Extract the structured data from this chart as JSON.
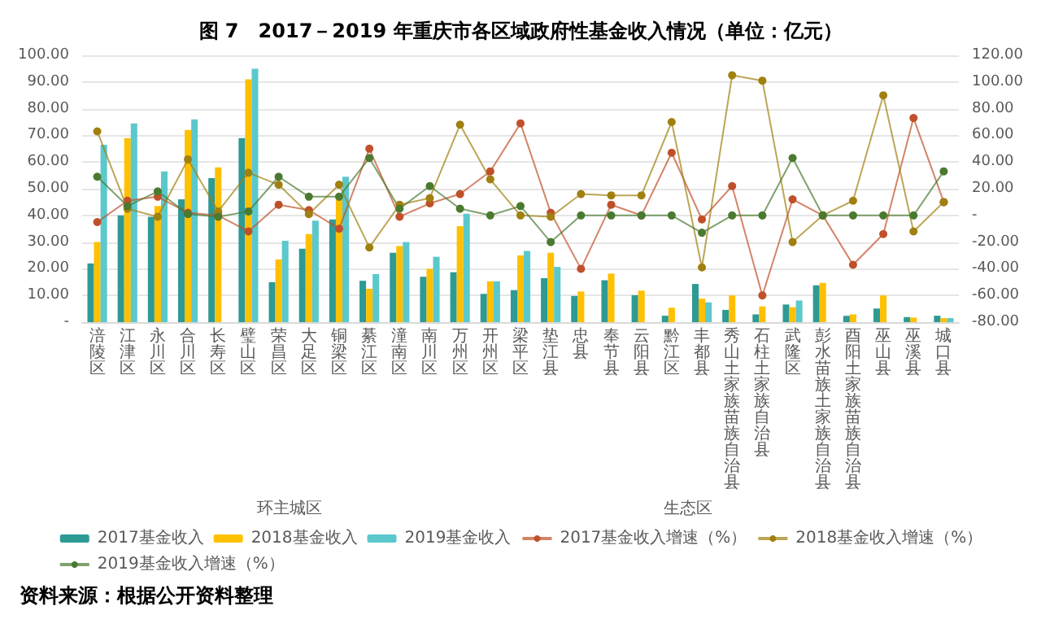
{
  "chart_data": {
    "type": "bar",
    "title": "图 7　2017－2019 年重庆市各区域政府性基金收入情况（单位：亿元）",
    "categories": [
      "涪陵区",
      "江津区",
      "永川区",
      "合川区",
      "长寿区",
      "璧山区",
      "荣昌区",
      "大足区",
      "铜梁区",
      "綦江区",
      "潼南区",
      "南川区",
      "万州区",
      "开州区",
      "梁平区",
      "垫江县",
      "忠县",
      "奉节县",
      "云阳县",
      "黔江区",
      "丰都县",
      "秀山土家族苗族自治县",
      "石柱土家族自治县",
      "武隆区",
      "彭水苗族土家族自治县",
      "酉阳土家族苗族自治县",
      "巫山县",
      "巫溪县",
      "城口县"
    ],
    "series": [
      {
        "name": "2017基金收入",
        "color": "#2e9a94",
        "values": [
          22,
          40,
          39.5,
          46,
          54,
          69,
          15,
          27.5,
          38.5,
          15.5,
          26,
          17,
          18.7,
          10.6,
          12,
          16.5,
          9.8,
          15.7,
          10.1,
          2.4,
          14.3,
          4.6,
          2.9,
          6.6,
          13.8,
          2.4,
          5.1,
          1.9,
          2.4
        ]
      },
      {
        "name": "2018基金收入",
        "color": "#ffc000",
        "values": [
          30,
          69,
          43.5,
          72,
          58,
          91,
          23.5,
          33,
          47,
          12.5,
          28.5,
          20,
          36,
          15.3,
          25,
          26,
          11.5,
          18.2,
          11.8,
          5.4,
          8.8,
          10,
          5.9,
          5.6,
          14.7,
          2.9,
          10,
          1.7,
          1.5
        ]
      },
      {
        "name": "2019基金收入",
        "color": "#5bc8cc",
        "values": [
          66.5,
          74.5,
          56.5,
          76,
          null,
          95,
          30.5,
          38,
          54.5,
          18,
          30,
          24.5,
          40.6,
          15.3,
          26.7,
          20.7,
          null,
          null,
          null,
          null,
          7.4,
          null,
          null,
          8.1,
          null,
          null,
          null,
          null,
          1.5
        ]
      },
      {
        "name": "2017基金收入增速（%）",
        "type": "line",
        "axis": "y2",
        "color": "#c0502a",
        "values": [
          -5,
          11,
          14,
          2,
          0,
          -12,
          8,
          4,
          -10,
          50,
          -1,
          9,
          16,
          33,
          69,
          2,
          -40,
          8,
          0,
          47,
          -3,
          22,
          -60,
          12,
          0,
          -37,
          -14,
          73,
          10
        ]
      },
      {
        "name": "2018基金收入增速（%）",
        "type": "line",
        "axis": "y2",
        "color": "#a08010",
        "values": [
          63,
          5,
          -1,
          42,
          3,
          32,
          23,
          1,
          23,
          -24,
          8,
          13,
          68,
          27,
          0,
          -1,
          16,
          15,
          15,
          70,
          -39,
          105,
          101,
          -20,
          0,
          11,
          90,
          -12,
          10
        ]
      },
      {
        "name": "2019基金收入增速（%）",
        "type": "line",
        "axis": "y2",
        "color": "#4a7a30",
        "values": [
          29,
          7,
          18,
          1,
          -1,
          3,
          29,
          14,
          14,
          43,
          5,
          22,
          5,
          0,
          7,
          -20,
          0,
          0,
          0,
          0,
          -13,
          0,
          0,
          43,
          0,
          0,
          0,
          0,
          33
        ]
      }
    ],
    "ylim": [
      0,
      100
    ],
    "yticks": [
      {
        "value": 0,
        "label": "-"
      },
      {
        "value": 10,
        "label": "10.00"
      },
      {
        "value": 20,
        "label": "20.00"
      },
      {
        "value": 30,
        "label": "30.00"
      },
      {
        "value": 40,
        "label": "40.00"
      },
      {
        "value": 50,
        "label": "50.00"
      },
      {
        "value": 60,
        "label": "60.00"
      },
      {
        "value": 70,
        "label": "70.00"
      },
      {
        "value": 80,
        "label": "80.00"
      },
      {
        "value": 90,
        "label": "90.00"
      },
      {
        "value": 100,
        "label": "100.00"
      }
    ],
    "y2lim": [
      -80,
      120
    ],
    "y2ticks": [
      {
        "value": -80,
        "label": "-80.00"
      },
      {
        "value": -60,
        "label": "-60.00"
      },
      {
        "value": -40,
        "label": "-40.00"
      },
      {
        "value": -20,
        "label": "-20.00"
      },
      {
        "value": 0,
        "label": "-"
      },
      {
        "value": 20,
        "label": "20.00"
      },
      {
        "value": 40,
        "label": "40.00"
      },
      {
        "value": 60,
        "label": "60.00"
      },
      {
        "value": 80,
        "label": "80.00"
      },
      {
        "value": 100,
        "label": "100.00"
      },
      {
        "value": 120,
        "label": "120.00"
      }
    ],
    "annotations": [
      "环主城区",
      "生态区",
      "资料来源：根据公开资料整理"
    ],
    "grid": "y",
    "legend": "bottom",
    "marker": "circle"
  }
}
